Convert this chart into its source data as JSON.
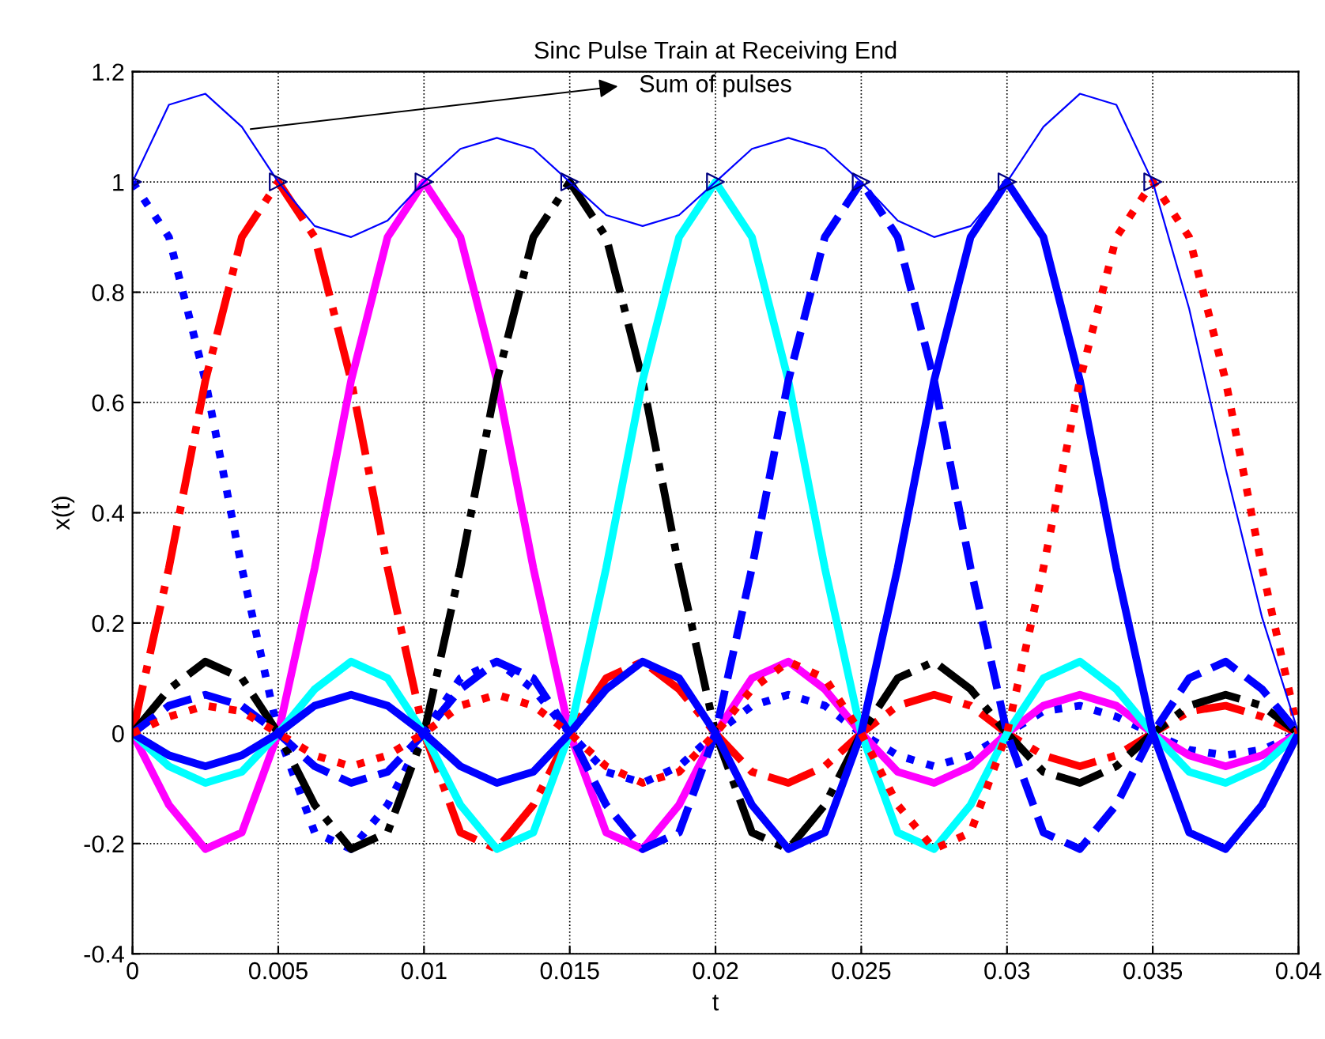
{
  "chart_data": {
    "type": "line",
    "title": "Sinc Pulse Train at Receiving End",
    "xlabel": "t",
    "ylabel": "x(t)",
    "x": [
      0,
      0.00125,
      0.0025,
      0.00375,
      0.005,
      0.00625,
      0.0075,
      0.00875,
      0.01,
      0.01125,
      0.0125,
      0.01375,
      0.015,
      0.01625,
      0.0175,
      0.01875,
      0.02,
      0.02125,
      0.0225,
      0.02375,
      0.025,
      0.02625,
      0.0275,
      0.02875,
      0.03,
      0.03125,
      0.0325,
      0.03375,
      0.035,
      0.03625,
      0.0375,
      0.03875,
      0.04
    ],
    "series": [
      {
        "color": "#0000ff",
        "line_style": "dotted",
        "values": [
          1,
          0.9,
          0.64,
          0.3,
          0,
          -0.18,
          -0.21,
          -0.13,
          0,
          0.1,
          0.13,
          0.08,
          0,
          -0.07,
          -0.09,
          -0.06,
          0,
          0.05,
          0.07,
          0.05,
          0,
          -0.04,
          -0.06,
          -0.04,
          0,
          0.04,
          0.05,
          0.03,
          0,
          -0.03,
          -0.04,
          -0.03,
          0
        ]
      },
      {
        "color": "#ff0000",
        "line_style": "dashdot",
        "values": [
          0,
          0.3,
          0.64,
          0.9,
          1,
          0.9,
          0.64,
          0.3,
          0,
          -0.18,
          -0.21,
          -0.13,
          0,
          0.1,
          0.13,
          0.08,
          0,
          -0.07,
          -0.09,
          -0.06,
          0,
          0.05,
          0.07,
          0.05,
          0,
          -0.04,
          -0.06,
          -0.04,
          0,
          0.04,
          0.05,
          0.03,
          0
        ]
      },
      {
        "color": "#ff00ff",
        "line_style": "solid",
        "values": [
          0,
          -0.13,
          -0.21,
          -0.18,
          0,
          0.3,
          0.64,
          0.9,
          1,
          0.9,
          0.64,
          0.3,
          0,
          -0.18,
          -0.21,
          -0.13,
          0,
          0.1,
          0.13,
          0.08,
          0,
          -0.07,
          -0.09,
          -0.06,
          0,
          0.05,
          0.07,
          0.05,
          0,
          -0.04,
          -0.06,
          -0.04,
          0
        ]
      },
      {
        "color": "#000000",
        "line_style": "dashdot",
        "values": [
          0,
          0.08,
          0.13,
          0.1,
          0,
          -0.13,
          -0.21,
          -0.18,
          0,
          0.3,
          0.64,
          0.9,
          1,
          0.9,
          0.64,
          0.3,
          0,
          -0.18,
          -0.21,
          -0.13,
          0,
          0.1,
          0.13,
          0.08,
          0,
          -0.07,
          -0.09,
          -0.06,
          0,
          0.05,
          0.07,
          0.05,
          0
        ]
      },
      {
        "color": "#00ffff",
        "line_style": "solid",
        "values": [
          0,
          -0.06,
          -0.09,
          -0.07,
          0,
          0.08,
          0.13,
          0.1,
          0,
          -0.13,
          -0.21,
          -0.18,
          0,
          0.3,
          0.64,
          0.9,
          1,
          0.9,
          0.64,
          0.3,
          0,
          -0.18,
          -0.21,
          -0.13,
          0,
          0.1,
          0.13,
          0.08,
          0,
          -0.07,
          -0.09,
          -0.06,
          0
        ]
      },
      {
        "color": "#0000ff",
        "line_style": "dashed",
        "values": [
          0,
          0.05,
          0.07,
          0.05,
          0,
          -0.06,
          -0.09,
          -0.07,
          0,
          0.08,
          0.13,
          0.1,
          0,
          -0.13,
          -0.21,
          -0.18,
          0,
          0.3,
          0.64,
          0.9,
          1,
          0.9,
          0.64,
          0.3,
          0,
          -0.18,
          -0.21,
          -0.13,
          0,
          0.1,
          0.13,
          0.08,
          0
        ]
      },
      {
        "color": "#0000ff",
        "line_style": "solid",
        "values": [
          0,
          -0.04,
          -0.06,
          -0.04,
          0,
          0.05,
          0.07,
          0.05,
          0,
          -0.06,
          -0.09,
          -0.07,
          0,
          0.08,
          0.13,
          0.1,
          0,
          -0.13,
          -0.21,
          -0.18,
          0,
          0.3,
          0.64,
          0.9,
          1,
          0.9,
          0.64,
          0.3,
          0,
          -0.18,
          -0.21,
          -0.13,
          0
        ]
      },
      {
        "color": "#ff0000",
        "line_style": "dotted",
        "values": [
          0,
          0.03,
          0.05,
          0.04,
          0,
          -0.04,
          -0.06,
          -0.04,
          0,
          0.05,
          0.07,
          0.05,
          0,
          -0.06,
          -0.09,
          -0.07,
          0,
          0.08,
          0.13,
          0.1,
          0,
          -0.13,
          -0.21,
          -0.18,
          0,
          0.3,
          0.64,
          0.9,
          1,
          0.9,
          0.64,
          0.3,
          0
        ]
      },
      {
        "color": "#0000ff",
        "line_style": "solid",
        "values": [
          1,
          1.14,
          1.16,
          1.1,
          1,
          0.92,
          0.9,
          0.93,
          1,
          1.06,
          1.08,
          1.06,
          1,
          0.94,
          0.92,
          0.94,
          1,
          1.06,
          1.08,
          1.06,
          1,
          0.93,
          0.9,
          0.92,
          1,
          1.1,
          1.16,
          1.14,
          1,
          0.77,
          0.48,
          0.21,
          0
        ]
      },
      {
        "type": "scatter",
        "color": "#000080",
        "marker": "triangle",
        "x": [
          0,
          0.005,
          0.01,
          0.015,
          0.02,
          0.025,
          0.03,
          0.035
        ],
        "values": [
          1,
          1,
          1,
          1,
          1,
          1,
          1,
          1
        ]
      }
    ],
    "annotations": [
      {
        "text": "Sum of pulses",
        "x": 0.0039,
        "y": 1.095
      }
    ],
    "xlim": [
      0,
      0.04
    ],
    "xticks": [
      0,
      0.005,
      0.01,
      0.015,
      0.02,
      0.025,
      0.03,
      0.035,
      0.04
    ],
    "ylim": [
      -0.4,
      1.2
    ],
    "yticks": [
      -0.4,
      -0.2,
      0,
      0.2,
      0.4,
      0.6,
      0.8,
      1,
      1.2
    ],
    "grid": true
  }
}
